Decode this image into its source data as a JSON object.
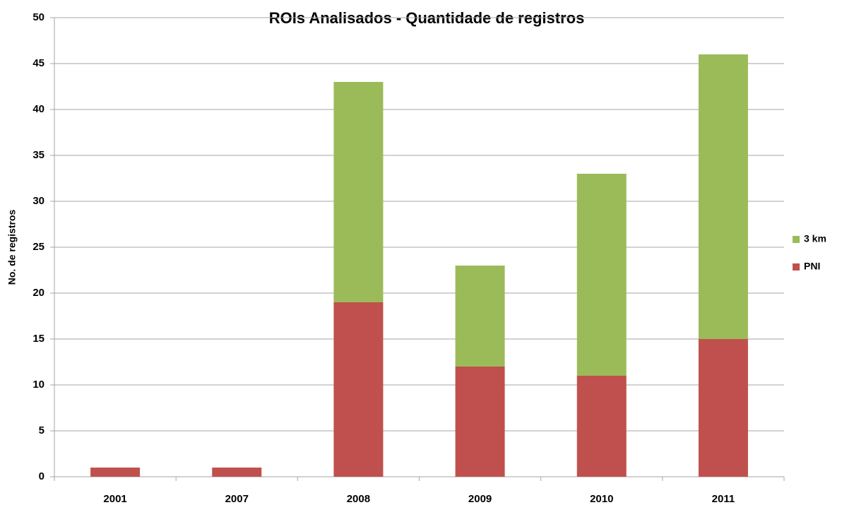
{
  "chart_data": {
    "type": "stacked_bar",
    "title": "ROIs Analisados - Quantidade de registros",
    "y_label": "No. de registros",
    "categories": [
      "2001",
      "2007",
      "2008",
      "2009",
      "2010",
      "2011"
    ],
    "series": [
      {
        "name": "PNI",
        "color": "#c0504d",
        "values": [
          1,
          1,
          19,
          12,
          11,
          15
        ]
      },
      {
        "name": "3 km",
        "color": "#9bbb59",
        "values": [
          0,
          0,
          24,
          11,
          22,
          31
        ]
      }
    ],
    "ylim": [
      0,
      50
    ],
    "yticks": [
      0,
      5,
      10,
      15,
      20,
      25,
      30,
      35,
      40,
      45,
      50
    ],
    "grid": true,
    "legend": "right"
  }
}
